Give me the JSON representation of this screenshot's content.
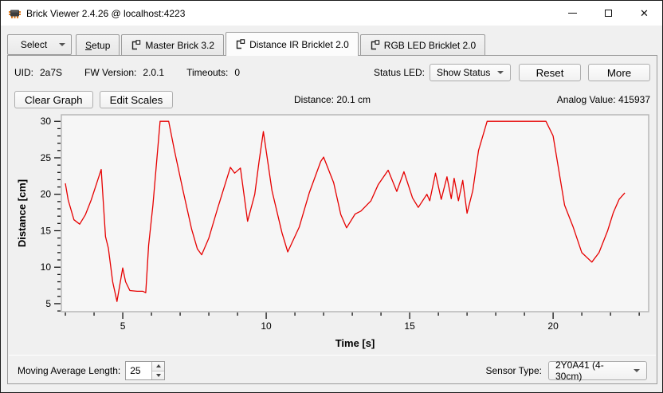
{
  "window": {
    "title": "Brick Viewer 2.4.26 @ localhost:4223",
    "close_glyph": "✕"
  },
  "tabs": {
    "select_label": "Select",
    "setup": {
      "accel": "S",
      "rest": "etup"
    },
    "items": [
      {
        "label": "Master Brick 3.2"
      },
      {
        "label": "Distance IR Bricklet 2.0"
      },
      {
        "label": "RGB LED Bricklet 2.0"
      }
    ]
  },
  "info_bar": {
    "uid_label": "UID:",
    "uid_value": "2a7S",
    "fw_label": "FW Version:",
    "fw_value": "2.0.1",
    "timeouts_label": "Timeouts:",
    "timeouts_value": "0",
    "status_led_label": "Status LED:",
    "status_led_value": "Show Status",
    "reset_label": "Reset",
    "more_label": "More"
  },
  "graph_bar": {
    "clear_label": "Clear Graph",
    "edit_scales_label": "Edit Scales",
    "distance_text": "Distance: 20.1 cm",
    "analog_text": "Analog Value: 415937"
  },
  "footer": {
    "moving_avg_label": "Moving Average Length:",
    "moving_avg_value": "25",
    "sensor_type_label": "Sensor Type:",
    "sensor_type_value": "2Y0A41 (4-30cm)"
  },
  "chart_data": {
    "type": "line",
    "title": "",
    "xlabel": "Time [s]",
    "ylabel": "Distance [cm]",
    "xlim": [
      2.86,
      23.33
    ],
    "ylim": [
      3.9,
      30.9
    ],
    "x_major_ticks": [
      5,
      10,
      15,
      20
    ],
    "x_minor_step": 1,
    "y_major_ticks": [
      5,
      10,
      15,
      20,
      25,
      30
    ],
    "y_minor_step": 1,
    "grid": false,
    "legend": "none",
    "line_color": "#e60000",
    "plot_bg": "#f6f6f6",
    "plot_border": "#b4b4b4",
    "series": [
      {
        "name": "Distance",
        "x": [
          3.0,
          3.1,
          3.3,
          3.5,
          3.7,
          3.9,
          4.1,
          4.25,
          4.4,
          4.5,
          4.65,
          4.8,
          5.0,
          5.1,
          5.25,
          5.5,
          5.7,
          5.8,
          5.9,
          6.05,
          6.3,
          6.6,
          6.8,
          7.1,
          7.4,
          7.6,
          7.75,
          8.0,
          8.3,
          8.6,
          8.75,
          8.9,
          9.1,
          9.35,
          9.6,
          9.75,
          9.9,
          10.2,
          10.55,
          10.75,
          11.15,
          11.5,
          11.9,
          12.0,
          12.35,
          12.6,
          12.8,
          13.1,
          13.3,
          13.65,
          13.9,
          14.25,
          14.55,
          14.8,
          15.1,
          15.3,
          15.6,
          15.7,
          15.9,
          16.1,
          16.3,
          16.45,
          16.55,
          16.7,
          16.85,
          17.0,
          17.2,
          17.4,
          17.7,
          19.75,
          20.0,
          20.4,
          20.7,
          21.0,
          21.35,
          21.6,
          21.9,
          22.1,
          22.3,
          22.5
        ],
        "y": [
          21.5,
          19.2,
          16.5,
          15.9,
          17.2,
          19.2,
          21.6,
          23.4,
          14.2,
          12.6,
          8.0,
          5.3,
          9.9,
          8.0,
          6.8,
          6.7,
          6.7,
          6.5,
          13.0,
          18.5,
          30,
          30,
          26.0,
          20.5,
          15.2,
          12.5,
          11.7,
          14.0,
          18.0,
          21.8,
          23.7,
          22.9,
          23.6,
          16.3,
          20.0,
          24.5,
          28.6,
          20.5,
          14.7,
          12.1,
          15.5,
          20.2,
          24.5,
          25.1,
          21.6,
          17.2,
          15.4,
          17.3,
          17.7,
          19.1,
          21.3,
          23.3,
          20.4,
          23.1,
          19.5,
          18.2,
          20.0,
          19.1,
          22.9,
          19.3,
          22.4,
          19.4,
          22.2,
          19.1,
          21.9,
          17.4,
          20.5,
          26.0,
          30,
          30,
          28.0,
          18.5,
          15.5,
          12.0,
          10.7,
          12.0,
          15.0,
          17.5,
          19.3,
          20.2
        ]
      }
    ]
  }
}
